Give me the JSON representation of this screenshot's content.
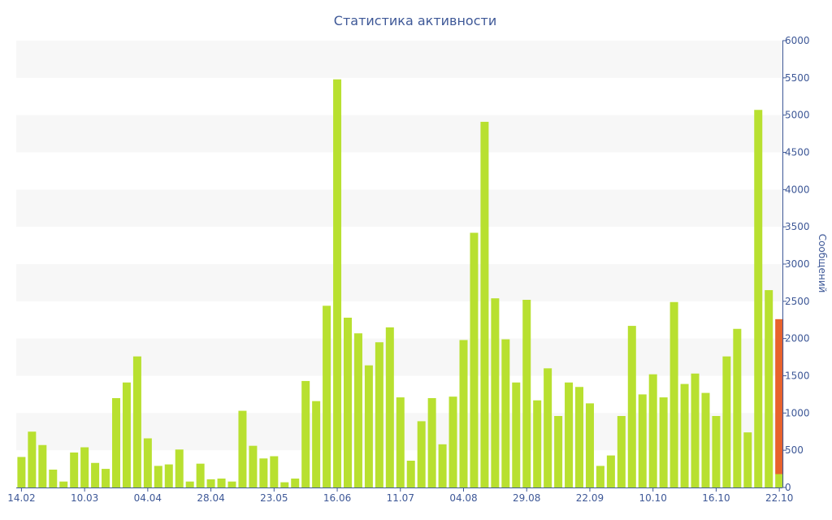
{
  "chart_data": {
    "type": "bar",
    "title": "Статистика активности",
    "ylabel": "Сообщений",
    "xlabel": "",
    "ylim": [
      0,
      6000
    ],
    "yticks": [
      0,
      500,
      1000,
      1500,
      2000,
      2500,
      3000,
      3500,
      4000,
      4500,
      5000,
      5500,
      6000
    ],
    "y_axis_side": "right",
    "grid": "alternating horizontal bands",
    "xtick_labels": [
      {
        "index": 0,
        "label": "14.02"
      },
      {
        "index": 6,
        "label": "10.03"
      },
      {
        "index": 12,
        "label": "04.04"
      },
      {
        "index": 18,
        "label": "28.04"
      },
      {
        "index": 24,
        "label": "23.05"
      },
      {
        "index": 30,
        "label": "16.06"
      },
      {
        "index": 36,
        "label": "11.07"
      },
      {
        "index": 42,
        "label": "04.08"
      },
      {
        "index": 48,
        "label": "29.08"
      },
      {
        "index": 54,
        "label": "22.09"
      },
      {
        "index": 60,
        "label": "10.10"
      },
      {
        "index": 66,
        "label": "16.10"
      },
      {
        "index": 72,
        "label": "22.10"
      }
    ],
    "series": [
      {
        "color": "#b8e030",
        "values": [
          410,
          750,
          570,
          240,
          80,
          470,
          540,
          330,
          250,
          1200,
          1410,
          1760,
          660,
          290,
          310,
          510,
          80,
          320,
          110,
          120,
          80,
          1030,
          560,
          390,
          420,
          70,
          120,
          1430,
          1160,
          2440,
          5480,
          2280,
          2070,
          1640,
          1950,
          2150,
          1210,
          360,
          890,
          1200,
          580,
          1220,
          1980,
          3420,
          4910,
          2540,
          1990,
          1410,
          2520,
          1170,
          1600,
          960,
          1410,
          1350,
          1130,
          290,
          430,
          960,
          2170,
          1250,
          1520,
          1210,
          2490,
          1390,
          1530,
          1270,
          960,
          1760,
          2130,
          740,
          5070,
          2650,
          180
        ]
      },
      {
        "color": "#e8622c",
        "values": [
          0,
          0,
          0,
          0,
          0,
          0,
          0,
          0,
          0,
          0,
          0,
          0,
          0,
          0,
          0,
          0,
          0,
          0,
          0,
          0,
          0,
          0,
          0,
          0,
          0,
          0,
          0,
          0,
          0,
          0,
          0,
          0,
          0,
          0,
          0,
          0,
          0,
          0,
          0,
          0,
          0,
          0,
          0,
          0,
          0,
          0,
          0,
          0,
          0,
          0,
          0,
          0,
          0,
          0,
          0,
          0,
          0,
          0,
          0,
          0,
          0,
          0,
          0,
          0,
          0,
          0,
          0,
          0,
          0,
          0,
          0,
          0,
          2080
        ]
      }
    ]
  }
}
